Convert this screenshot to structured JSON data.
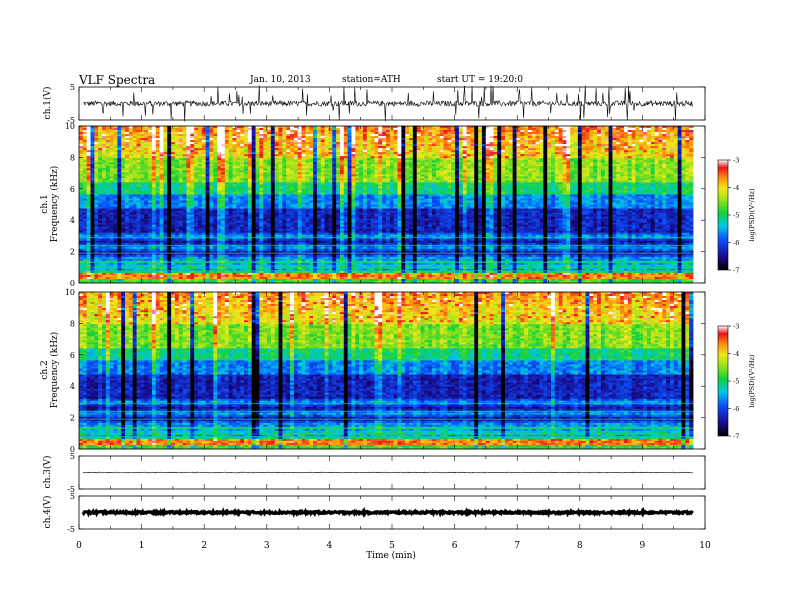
{
  "header": {
    "title": "VLF Spectra",
    "date": "Jan. 10, 2013",
    "station": "station=ATH",
    "start": "start UT =  19:20:0"
  },
  "chart_data": [
    {
      "type": "line",
      "panel": "ch1-waveform",
      "ylabel": "ch.1(V)",
      "ylim": [
        -5,
        5
      ],
      "yticks": [
        5,
        -5
      ],
      "xlim": [
        0,
        10
      ],
      "note": "noisy waveform, baseline near 0 V with frequent spikes"
    },
    {
      "type": "heatmap",
      "panel": "ch1-spectrogram",
      "ylabel": "ch.1\nFrequency (kHz)",
      "ylim": [
        0,
        10
      ],
      "yticks": [
        0,
        2,
        4,
        6,
        8,
        10
      ],
      "xlim": [
        0,
        10
      ],
      "colorbar": {
        "label": "log(PSD)(V²/Hz)",
        "range": [
          -7,
          -3
        ],
        "ticks": [
          -3,
          -4,
          -5,
          -6,
          -7
        ]
      }
    },
    {
      "type": "heatmap",
      "panel": "ch2-spectrogram",
      "ylabel": "ch.2\nFrequency (kHz)",
      "ylim": [
        0,
        10
      ],
      "yticks": [
        0,
        2,
        4,
        6,
        8,
        10
      ],
      "xlim": [
        0,
        10
      ],
      "colorbar": {
        "label": "log(PSD)(V²/Hz)",
        "range": [
          -7,
          -3
        ],
        "ticks": [
          -3,
          -4,
          -5,
          -6,
          -7
        ]
      }
    },
    {
      "type": "line",
      "panel": "ch3-waveform",
      "ylabel": "ch.3(V)",
      "ylim": [
        -5,
        5
      ],
      "yticks": [
        5,
        -5
      ],
      "xlim": [
        0,
        10
      ],
      "note": "flat trace near 0 V"
    },
    {
      "type": "line",
      "panel": "ch4-waveform",
      "ylabel": "ch.4(V)",
      "ylim": [
        -5,
        5
      ],
      "yticks": [
        5,
        -5
      ],
      "xlim": [
        0,
        10
      ],
      "xlabel": "Time (min)",
      "xticks": [
        0,
        1,
        2,
        3,
        4,
        5,
        6,
        7,
        8,
        9,
        10
      ],
      "note": "thick flat trace near 0 V"
    }
  ]
}
